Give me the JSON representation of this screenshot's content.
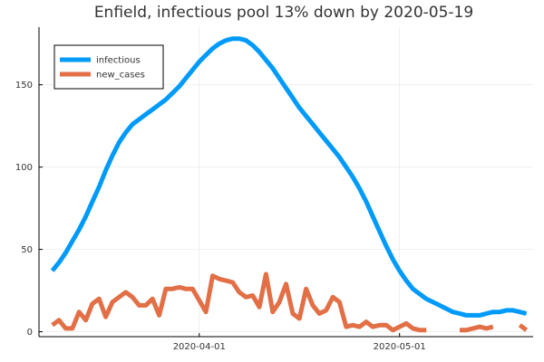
{
  "chart_data": {
    "type": "line",
    "title": "Enfield, infectious pool 13% down by 2020-05-19",
    "xlabel": "",
    "ylabel": "",
    "x_start": "2020-03-10",
    "x_end": "2020-05-19",
    "xlim": [
      "2020-03-08",
      "2020-05-21"
    ],
    "ylim": [
      -3,
      185
    ],
    "x_ticks": [
      {
        "date": "2020-04-01",
        "label": "2020-04-01"
      },
      {
        "date": "2020-05-01",
        "label": "2020-05-01"
      }
    ],
    "y_ticks": [
      0,
      50,
      100,
      150
    ],
    "grid": true,
    "legend_position": "top-left",
    "series": [
      {
        "name": "infectious",
        "color": "#009AFA",
        "values": [
          37,
          42,
          48,
          55,
          62,
          70,
          79,
          88,
          98,
          107,
          115,
          121,
          126,
          129,
          132,
          135,
          138,
          141,
          145,
          149,
          154,
          159,
          164,
          168,
          172,
          175,
          177,
          178,
          178,
          177,
          174,
          170,
          165,
          160,
          154,
          148,
          142,
          136,
          131,
          126,
          121,
          116,
          111,
          106,
          100,
          94,
          87,
          79,
          70,
          61,
          52,
          44,
          37,
          31,
          26,
          23,
          20,
          18,
          16,
          14,
          12,
          11,
          10,
          10,
          10,
          11,
          12,
          12,
          13,
          13,
          12,
          11
        ]
      },
      {
        "name": "new_cases",
        "color": "#E26F46",
        "values": [
          4,
          7,
          2,
          2,
          12,
          7,
          17,
          20,
          9,
          18,
          21,
          24,
          21,
          16,
          16,
          20,
          10,
          26,
          26,
          27,
          26,
          26,
          19,
          12,
          34,
          32,
          31,
          30,
          24,
          21,
          22,
          15,
          35,
          12,
          18,
          29,
          11,
          8,
          26,
          16,
          11,
          13,
          21,
          18,
          3,
          4,
          3,
          6,
          3,
          4,
          4,
          1,
          3,
          5,
          2,
          1,
          1,
          null,
          null,
          null,
          null,
          1,
          1,
          2,
          3,
          2,
          3,
          null,
          null,
          null,
          4,
          1
        ]
      }
    ]
  }
}
